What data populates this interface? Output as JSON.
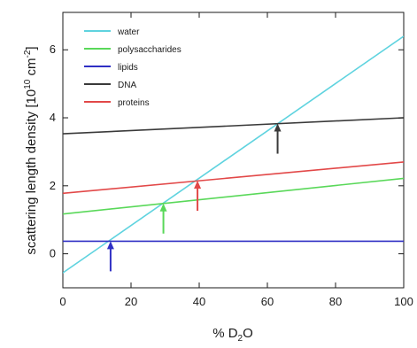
{
  "chart_data": {
    "type": "line",
    "title": "",
    "xlabel": "% D2O",
    "ylabel": "scattering length density [10^10 cm^-2]",
    "xlim": [
      0,
      100
    ],
    "ylim": [
      -1.0,
      7.1
    ],
    "xticks": [
      0,
      20,
      40,
      60,
      80,
      100
    ],
    "yticks": [
      0,
      2,
      4,
      6
    ],
    "grid": false,
    "legend_position": "top-left",
    "series": [
      {
        "name": "water",
        "color": "#5fd3df",
        "x": [
          0,
          100
        ],
        "values": [
          -0.56,
          6.4
        ]
      },
      {
        "name": "polysaccharides",
        "color": "#59d859",
        "x": [
          0,
          100
        ],
        "values": [
          1.17,
          2.22
        ]
      },
      {
        "name": "lipids",
        "color": "#2f2fc4",
        "x": [
          0,
          100
        ],
        "values": [
          0.37,
          0.37
        ]
      },
      {
        "name": "DNA",
        "color": "#3a3a3a",
        "x": [
          0,
          100
        ],
        "values": [
          3.53,
          4.0
        ]
      },
      {
        "name": "proteins",
        "color": "#e24848",
        "x": [
          0,
          100
        ],
        "values": [
          1.78,
          2.7
        ]
      }
    ],
    "annotations": [
      {
        "type": "arrow",
        "series": "lipids",
        "color": "#2f2fc4",
        "x": 14,
        "y": 0.37
      },
      {
        "type": "arrow",
        "series": "polysaccharides",
        "color": "#59d859",
        "x": 29.5,
        "y": 1.48
      },
      {
        "type": "arrow",
        "series": "proteins",
        "color": "#e24848",
        "x": 39.5,
        "y": 2.15
      },
      {
        "type": "arrow",
        "series": "DNA",
        "color": "#3a3a3a",
        "x": 63,
        "y": 3.83
      }
    ]
  }
}
